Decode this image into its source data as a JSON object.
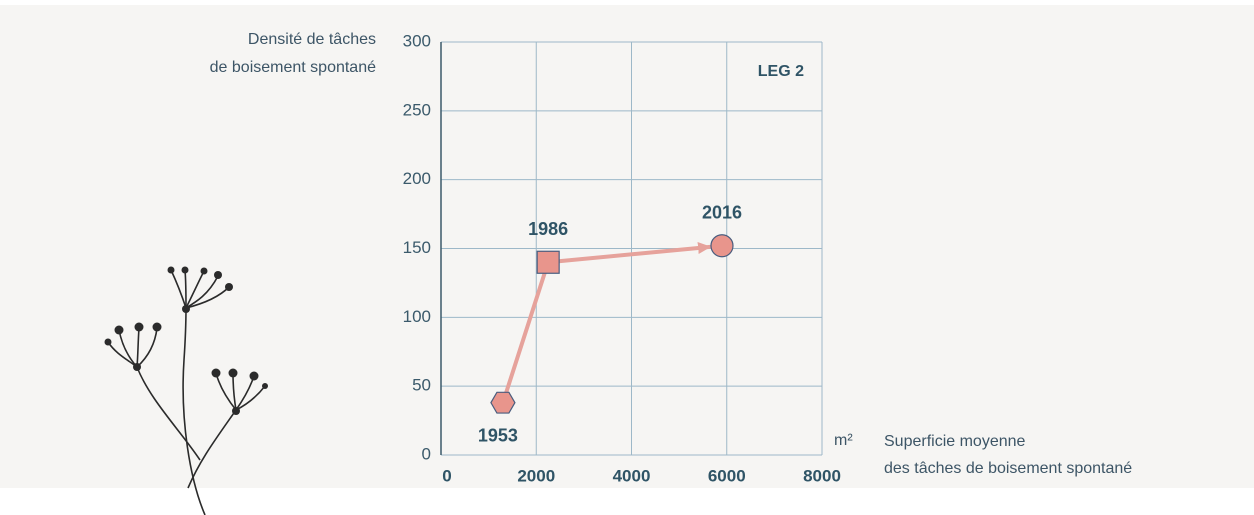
{
  "chart_data": {
    "type": "scatter",
    "title": "LEG 2",
    "ylabel": [
      "Densité de tâches",
      "de boisement spontané"
    ],
    "xlabel": [
      "Superficie moyenne",
      "des tâches de boisement spontané"
    ],
    "xunit": "m²",
    "x": [
      1300,
      2250,
      5900
    ],
    "values": [
      38,
      140,
      152
    ],
    "point_labels": [
      "1953",
      "1986",
      "2016"
    ],
    "markers": [
      "hexagon",
      "square",
      "circle"
    ],
    "color": "#e8958c",
    "line_color": "#e6a29b",
    "xlim": [
      0,
      8000
    ],
    "xticks": [
      0,
      2000,
      4000,
      6000,
      8000
    ],
    "ylim": [
      0,
      300
    ],
    "yticks": [
      0,
      50,
      100,
      150,
      200,
      250,
      300
    ],
    "grid": true
  }
}
